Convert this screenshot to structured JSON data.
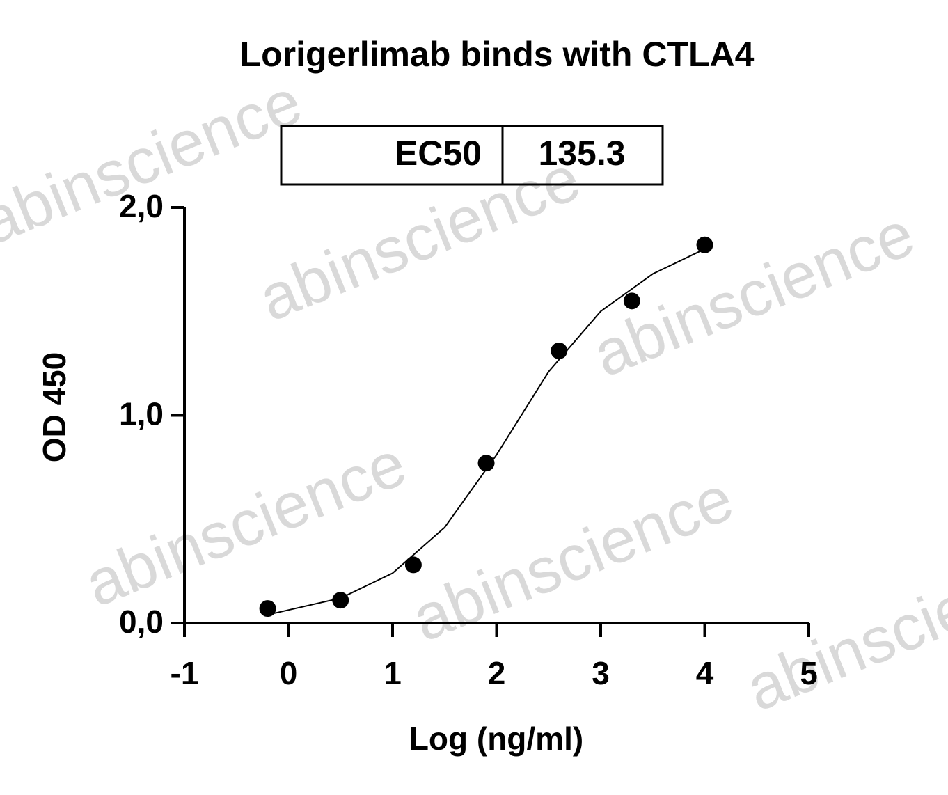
{
  "chart_data": {
    "type": "scatter",
    "title": "Lorigerlimab binds with CTLA4",
    "watermark": "abinscience",
    "ec50_label": "EC50",
    "ec50_value": "135.3",
    "xlabel": "Log (ng/ml)",
    "ylabel": "OD 450",
    "xlim": [
      -1,
      5
    ],
    "xticks": [
      -1,
      0,
      1,
      2,
      3,
      4,
      5
    ],
    "ylim": [
      0,
      2
    ],
    "yticks": [
      {
        "value": 0,
        "label": "0,0"
      },
      {
        "value": 1,
        "label": "1,0"
      },
      {
        "value": 2,
        "label": "2,0"
      }
    ],
    "series": [
      {
        "x": [
          -0.2,
          0.5,
          1.2,
          1.9,
          2.6,
          3.3,
          4.0
        ],
        "values": [
          0.07,
          0.11,
          0.28,
          0.77,
          1.31,
          1.55,
          1.82
        ],
        "color": "#000000"
      }
    ],
    "fit": {
      "x": [
        -0.2,
        0.5,
        1.0,
        1.5,
        2.0,
        2.5,
        3.0,
        3.5,
        4.0
      ],
      "values": [
        0.04,
        0.12,
        0.24,
        0.46,
        0.81,
        1.21,
        1.5,
        1.68,
        1.8
      ],
      "color": "#000000"
    }
  }
}
